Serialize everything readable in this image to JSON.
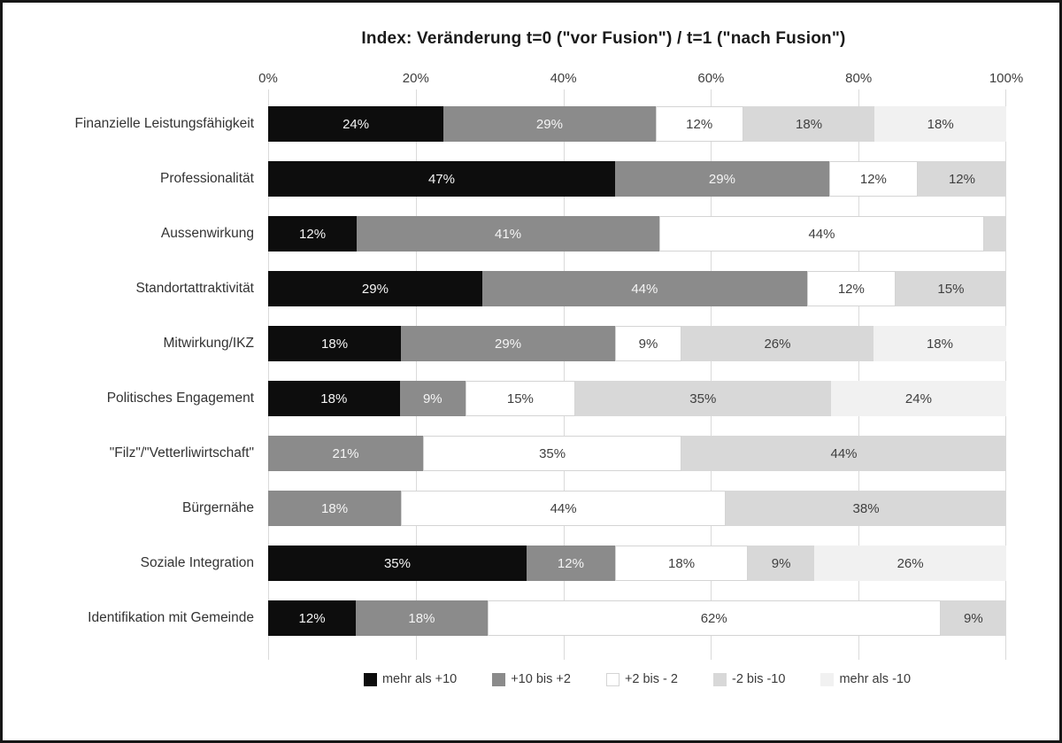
{
  "title": "Index: Veränderung t=0 (\"vor Fusion\") / t=1 (\"nach Fusion\")",
  "axis": {
    "ticks": [
      "0%",
      "20%",
      "40%",
      "60%",
      "80%",
      "100%"
    ],
    "min": 0,
    "max": 100
  },
  "colors": {
    "black": "#0d0d0d",
    "dark_gray": "#8b8b8b",
    "white": "#ffffff",
    "light_gray": "#d8d8d8",
    "very_light_gray": "#f1f1f1",
    "gridline": "#dadada",
    "segment_border": "#d4d4d4",
    "label_dark": "#3f3f3f",
    "label_light": "#f5f5f5"
  },
  "legend": [
    {
      "label": "mehr als +10",
      "color": "#0d0d0d",
      "border": false
    },
    {
      "label": "+10 bis +2",
      "color": "#8b8b8b",
      "border": false
    },
    {
      "label": "+2 bis - 2",
      "color": "#ffffff",
      "border": true
    },
    {
      "label": "-2 bis -10",
      "color": "#d8d8d8",
      "border": false
    },
    {
      "label": "mehr als -10",
      "color": "#f1f1f1",
      "border": false
    }
  ],
  "chart_data": {
    "type": "bar",
    "orientation": "horizontal-stacked",
    "title": "Index: Veränderung t=0 (\"vor Fusion\") / t=1 (\"nach Fusion\")",
    "xlabel": "",
    "ylabel": "",
    "xlim": [
      0,
      100
    ],
    "grid": true,
    "legend_position": "bottom",
    "value_suffix": "%",
    "min_labeled_value": 5,
    "categories": [
      "Finanzielle Leistungsfähigkeit",
      "Professionalität",
      "Aussenwirkung",
      "Standortattraktivität",
      "Mitwirkung/IKZ",
      "Politisches Engagement",
      "\"Filz\"/\"Vetterliwirtschaft\"",
      "Bürgernähe",
      "Soziale Integration",
      "Identifikation mit Gemeinde"
    ],
    "series": [
      {
        "name": "mehr als +10",
        "color": "#0d0d0d",
        "text_color": "#f5f5f5",
        "border": false,
        "values": [
          24,
          47,
          12,
          29,
          18,
          18,
          0,
          0,
          35,
          12
        ]
      },
      {
        "name": "+10 bis +2",
        "color": "#8b8b8b",
        "text_color": "#f5f5f5",
        "border": false,
        "values": [
          29,
          29,
          41,
          44,
          29,
          9,
          21,
          18,
          12,
          18
        ]
      },
      {
        "name": "+2 bis - 2",
        "color": "#ffffff",
        "text_color": "#3f3f3f",
        "border": true,
        "values": [
          12,
          12,
          44,
          12,
          9,
          15,
          35,
          44,
          18,
          62
        ]
      },
      {
        "name": "-2 bis -10",
        "color": "#d8d8d8",
        "text_color": "#3f3f3f",
        "border": false,
        "values": [
          18,
          12,
          3,
          15,
          26,
          35,
          44,
          38,
          9,
          9
        ]
      },
      {
        "name": "mehr als -10",
        "color": "#f1f1f1",
        "text_color": "#3f3f3f",
        "border": false,
        "values": [
          18,
          0,
          0,
          0,
          18,
          24,
          0,
          0,
          26,
          0
        ]
      }
    ]
  }
}
